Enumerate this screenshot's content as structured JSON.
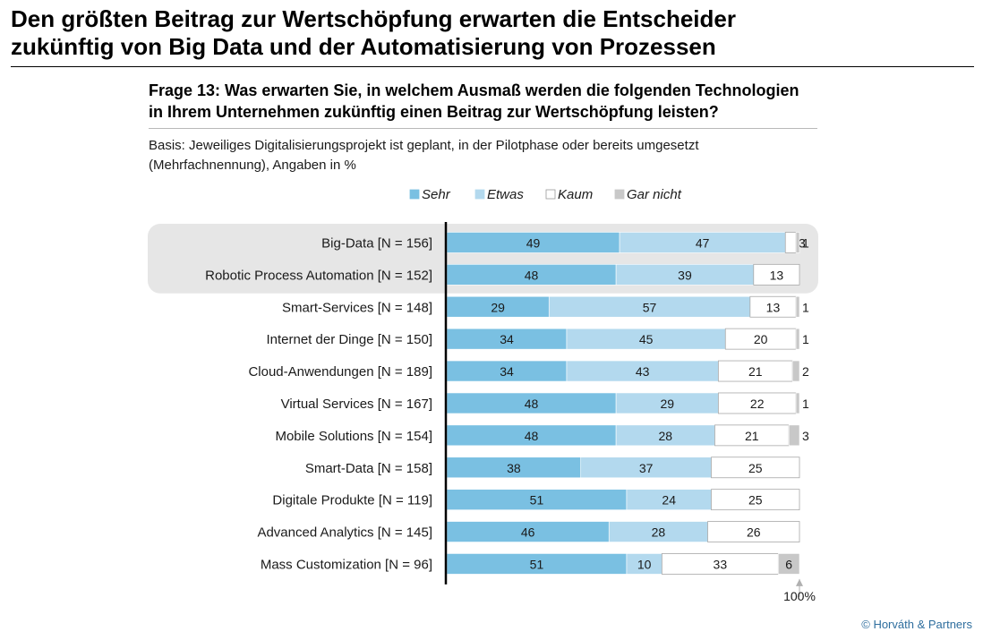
{
  "headline": {
    "line1": "Den größten Beitrag zur Wertschöpfung erwarten die Entscheider",
    "line2": "zukünftig von Big Data und der Automatisierung von Prozessen"
  },
  "question": {
    "line1": "Frage 13: Was erwarten Sie, in welchem Ausmaß werden die folgenden Technologien",
    "line2": "in Ihrem Unternehmen zukünftig einen Beitrag zur Wertschöpfung leisten?"
  },
  "basis": {
    "line1": "Basis: Jeweiliges Digitalisierungsprojekt ist geplant, in der Pilotphase oder bereits umgesetzt",
    "line2": "(Mehrfachnennung), Angaben in %"
  },
  "copyright": "© Horváth & Partners",
  "chart_data": {
    "type": "bar",
    "orientation": "horizontal",
    "stacked": true,
    "xlim": [
      0,
      100
    ],
    "x_end_label": "100%",
    "legend_position": "top",
    "highlighted_categories": [
      "Big-Data [N = 156]",
      "Robotic Process Automation [N = 152]"
    ],
    "categories": [
      "Big-Data [N = 156]",
      "Robotic Process Automation [N = 152]",
      "Smart-Services [N = 148]",
      "Internet der Dinge [N = 150]",
      "Cloud-Anwendungen [N = 189]",
      "Virtual Services [N = 167]",
      "Mobile Solutions [N = 154]",
      "Smart-Data [N = 158]",
      "Digitale Produkte [N = 119]",
      "Advanced Analytics [N = 145]",
      "Mass Customization [N = 96]"
    ],
    "series": [
      {
        "name": "Sehr",
        "color": "#7ac0e2",
        "values": [
          49,
          48,
          29,
          34,
          34,
          48,
          48,
          38,
          51,
          46,
          51
        ]
      },
      {
        "name": "Etwas",
        "color": "#b3d9ee",
        "values": [
          47,
          39,
          57,
          45,
          43,
          29,
          28,
          37,
          24,
          28,
          10
        ]
      },
      {
        "name": "Kaum",
        "color": "#ffffff",
        "values": [
          3,
          13,
          13,
          20,
          21,
          22,
          21,
          25,
          25,
          26,
          33
        ]
      },
      {
        "name": "Gar nicht",
        "color": "#c8c8c8",
        "values": [
          1,
          0,
          1,
          1,
          2,
          1,
          3,
          0,
          0,
          0,
          6
        ]
      }
    ]
  }
}
